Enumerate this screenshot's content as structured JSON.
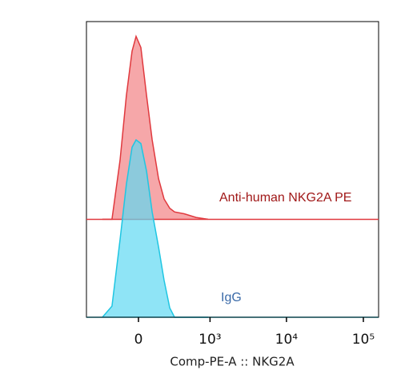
{
  "chart_data": {
    "type": "histogram-overlay",
    "x_label": "Comp-PE-A :: NKG2A",
    "xscale": "biexponential",
    "xlim": [
      -540,
      157800
    ],
    "xticks": [
      0,
      {
        "value": 1000,
        "label": "10³"
      },
      {
        "value": 10000,
        "label": "10⁴"
      },
      {
        "value": 100000,
        "label": "10⁵"
      }
    ],
    "ylim": [
      0,
      160
    ],
    "x": [
      -310,
      -209,
      -138,
      -88,
      -46,
      -17,
      17,
      58,
      100,
      152,
      201,
      257,
      310,
      437,
      648,
      943
    ],
    "series": [
      {
        "name": "Anti-human NKG2A PE",
        "color": "#e0393e",
        "fill": "#f38a8c",
        "label_color": "#a01818",
        "offset": 53,
        "values": [
          0,
          0,
          32,
          67,
          91,
          99,
          93,
          67,
          43,
          22,
          11,
          6,
          4,
          3,
          1,
          0
        ]
      },
      {
        "name": "IgG",
        "color": "#1fc6e2",
        "fill": "#5fd8f2",
        "label_color": "#3a6aa8",
        "offset": 0,
        "values": [
          0,
          6,
          42,
          72,
          92,
          96,
          94,
          79,
          57,
          38,
          20,
          5,
          0,
          0,
          0,
          0
        ]
      }
    ]
  }
}
